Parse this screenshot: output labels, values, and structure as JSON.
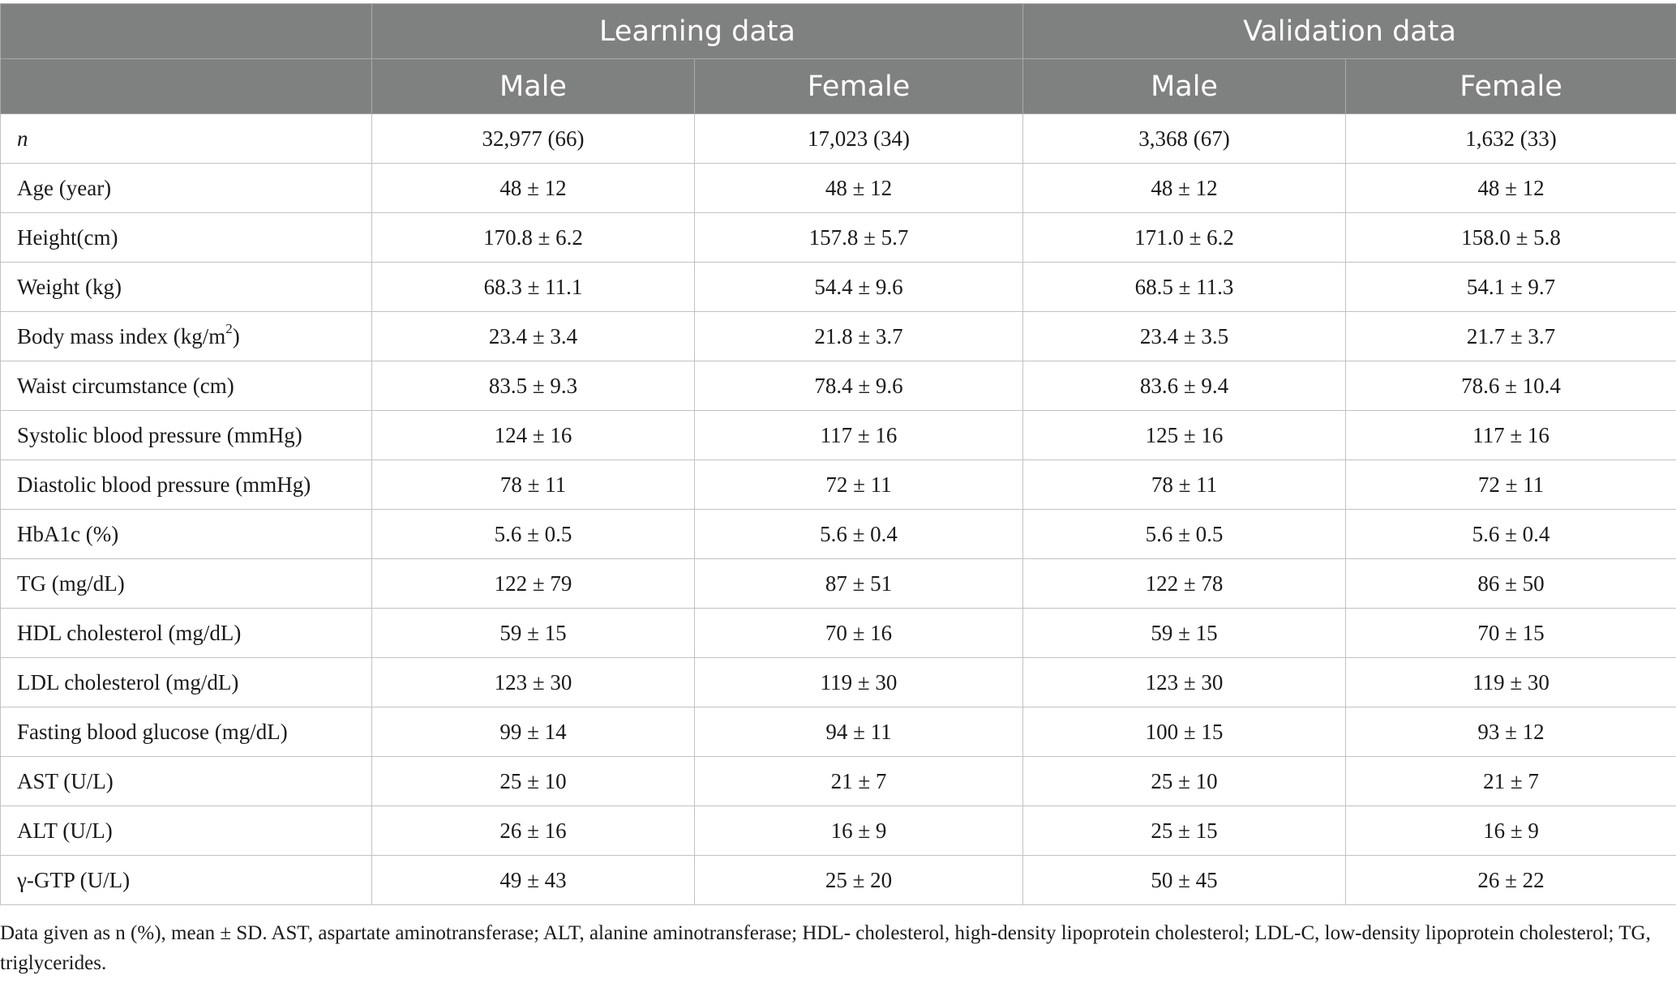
{
  "header": {
    "group_learning": "Learning data",
    "group_validation": "Validation data",
    "columns": [
      "Male",
      "Female",
      "Male",
      "Female"
    ]
  },
  "rows": [
    {
      "label": "n",
      "values": [
        "32,977 (66)",
        "17,023 (34)",
        "3,368 (67)",
        "1,632 (33)"
      ]
    },
    {
      "label": "Age (year)",
      "values": [
        "48 ± 12",
        "48 ± 12",
        "48 ± 12",
        "48 ± 12"
      ]
    },
    {
      "label": "Height(cm)",
      "values": [
        "170.8 ± 6.2",
        "157.8 ± 5.7",
        "171.0 ± 6.2",
        "158.0 ± 5.8"
      ]
    },
    {
      "label": "Weight (kg)",
      "values": [
        "68.3 ± 11.1",
        "54.4 ± 9.6",
        "68.5 ± 11.3",
        "54.1 ± 9.7"
      ]
    },
    {
      "label": "Body mass index (kg/m",
      "label_sup": "2",
      "label_after": ")",
      "values": [
        "23.4 ± 3.4",
        "21.8 ± 3.7",
        "23.4 ± 3.5",
        "21.7 ± 3.7"
      ]
    },
    {
      "label": "Waist circumstance (cm)",
      "values": [
        "83.5 ± 9.3",
        "78.4 ± 9.6",
        "83.6 ± 9.4",
        "78.6 ± 10.4"
      ]
    },
    {
      "label": "Systolic blood pressure (mmHg)",
      "values": [
        "124 ± 16",
        "117 ± 16",
        "125 ± 16",
        "117 ± 16"
      ]
    },
    {
      "label": "Diastolic blood pressure (mmHg)",
      "values": [
        "78 ± 11",
        "72 ± 11",
        "78 ± 11",
        "72 ± 11"
      ]
    },
    {
      "label": "HbA1c (%)",
      "values": [
        "5.6 ± 0.5",
        "5.6 ± 0.4",
        "5.6 ± 0.5",
        "5.6 ± 0.4"
      ]
    },
    {
      "label": "TG (mg/dL)",
      "values": [
        "122 ± 79",
        "87 ± 51",
        "122 ± 78",
        "86 ± 50"
      ]
    },
    {
      "label": "HDL cholesterol (mg/dL)",
      "values": [
        "59 ± 15",
        "70 ± 16",
        "59 ± 15",
        "70 ± 15"
      ]
    },
    {
      "label": "LDL cholesterol (mg/dL)",
      "values": [
        "123 ± 30",
        "119 ± 30",
        "123 ± 30",
        "119 ± 30"
      ]
    },
    {
      "label": "Fasting blood glucose (mg/dL)",
      "values": [
        "99 ± 14",
        "94 ± 11",
        "100 ± 15",
        "93 ± 12"
      ]
    },
    {
      "label": "AST (U/L)",
      "values": [
        "25 ± 10",
        "21 ± 7",
        "25 ± 10",
        "21 ± 7"
      ]
    },
    {
      "label": "ALT (U/L)",
      "values": [
        "26 ± 16",
        "16 ± 9",
        "25 ± 15",
        "16 ± 9"
      ]
    },
    {
      "label": "γ-GTP (U/L)",
      "values": [
        "49 ± 43",
        "25 ± 20",
        "50 ± 45",
        "26 ± 22"
      ]
    }
  ],
  "footnote": "Data given as n (%), mean ± SD. AST, aspartate aminotransferase; ALT, alanine aminotransferase; HDL- cholesterol, high-density lipoprotein cholesterol; LDL-C, low-density lipoprotein cholesterol; TG, triglycerides.",
  "colors": {
    "header_bg": "#7f8180",
    "header_text": "#ffffff",
    "grid": "#c2c2c2"
  }
}
